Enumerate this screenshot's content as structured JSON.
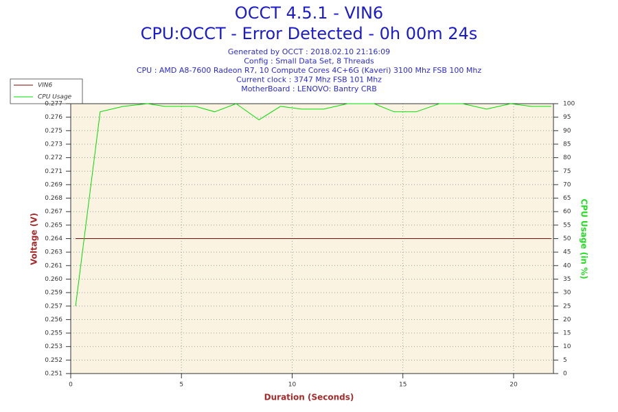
{
  "chart_data": {
    "type": "line",
    "title": "OCCT 4.5.1 - VIN6",
    "subtitle": "CPU:OCCT - Error Detected - 0h 00m 24s",
    "info": [
      "Generated by OCCT : 2018.02.10 21:16:09",
      "Config : Small Data Set, 8 Threads",
      "CPU : AMD A8-7600 Radeon R7, 10 Compute Cores 4C+6G (Kaveri) 3100 Mhz FSB 100 Mhz",
      "Current clock : 3747 Mhz FSB 101 Mhz",
      "MotherBoard : LENOVO: Bantry CRB"
    ],
    "xlabel": "Duration (Seconds)",
    "ylabel": "Voltage (V)",
    "y2label": "CPU Usage (in %)",
    "x": [
      0.22,
      1.33,
      2.38,
      3.47,
      4.24,
      5.0,
      5.63,
      6.5,
      7.47,
      8.5,
      9.47,
      10.43,
      11.42,
      12.5,
      13.7,
      14.6,
      15.6,
      16.65,
      17.7,
      18.78,
      19.87,
      20.8,
      21.7
    ],
    "xlim": [
      0,
      21.8
    ],
    "xticks": [
      0,
      5,
      10,
      15,
      20
    ],
    "ylim": [
      0.2508,
      0.2772
    ],
    "yticks": [
      {
        "value": 0.2508,
        "label": "0.251"
      },
      {
        "value": 0.25212,
        "label": "0.252"
      },
      {
        "value": 0.25344,
        "label": "0.253"
      },
      {
        "value": 0.25476,
        "label": "0.255"
      },
      {
        "value": 0.25608,
        "label": "0.256"
      },
      {
        "value": 0.2574,
        "label": "0.257"
      },
      {
        "value": 0.25872,
        "label": "0.259"
      },
      {
        "value": 0.26004,
        "label": "0.260"
      },
      {
        "value": 0.26136,
        "label": "0.261"
      },
      {
        "value": 0.26268,
        "label": "0.263"
      },
      {
        "value": 0.264,
        "label": "0.264"
      },
      {
        "value": 0.26532,
        "label": "0.265"
      },
      {
        "value": 0.26664,
        "label": "0.267"
      },
      {
        "value": 0.26796,
        "label": "0.268"
      },
      {
        "value": 0.26928,
        "label": "0.269"
      },
      {
        "value": 0.2706,
        "label": "0.271"
      },
      {
        "value": 0.27192,
        "label": "0.272"
      },
      {
        "value": 0.27324,
        "label": "0.273"
      },
      {
        "value": 0.27456,
        "label": "0.275"
      },
      {
        "value": 0.27588,
        "label": "0.276"
      },
      {
        "value": 0.2772,
        "label": "0.277"
      }
    ],
    "y2lim": [
      0,
      100
    ],
    "y2ticks": [
      0,
      5,
      10,
      15,
      20,
      25,
      30,
      35,
      40,
      45,
      50,
      55,
      60,
      65,
      70,
      75,
      80,
      85,
      90,
      95,
      100
    ],
    "grid": true,
    "legend": "top-left",
    "series": [
      {
        "name": "VIN6",
        "color": "#800000",
        "values": [
          0.264,
          0.264,
          0.264,
          0.264,
          0.264,
          0.264,
          0.264,
          0.264,
          0.264,
          0.264,
          0.264,
          0.264,
          0.264,
          0.264,
          0.264,
          0.264,
          0.264,
          0.264,
          0.264,
          0.264,
          0.264,
          0.264,
          0.264
        ]
      },
      {
        "name": "CPU Usage",
        "color": "#00dd00",
        "axis": "y2",
        "values": [
          25,
          97,
          99,
          100,
          99,
          99,
          99,
          97,
          100,
          94,
          99,
          98,
          98,
          100,
          100,
          97,
          97,
          100,
          100,
          98,
          100,
          99,
          99
        ]
      }
    ]
  }
}
